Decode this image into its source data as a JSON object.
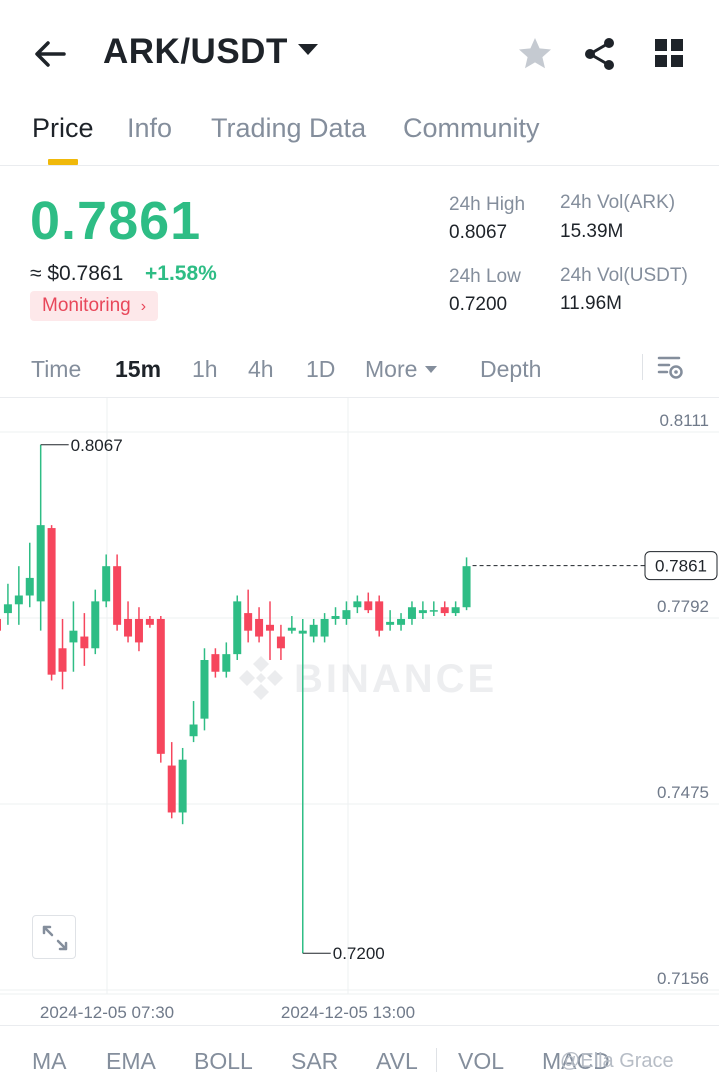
{
  "header": {
    "pair": "ARK/USDT",
    "icons": [
      "back-arrow-icon",
      "dropdown-caret-icon",
      "star-icon",
      "share-icon",
      "grid-icon"
    ]
  },
  "tabs": [
    {
      "label": "Price",
      "active": true
    },
    {
      "label": "Info",
      "active": false
    },
    {
      "label": "Trading Data",
      "active": false
    },
    {
      "label": "Community",
      "active": false
    }
  ],
  "price": {
    "last": "0.7861",
    "usd_approx": "≈ $0.7861",
    "change": "+1.58%",
    "monitor_label": "Monitoring",
    "monitor_chevron": "›"
  },
  "stats": {
    "high_label": "24h High",
    "high_value": "0.8067",
    "vol_ark_label": "24h Vol(ARK)",
    "vol_ark_value": "15.39M",
    "low_label": "24h Low",
    "low_value": "0.7200",
    "vol_usdt_label": "24h Vol(USDT)",
    "vol_usdt_value": "11.96M"
  },
  "intervals": [
    {
      "label": "Time",
      "active": false
    },
    {
      "label": "15m",
      "active": true
    },
    {
      "label": "1h",
      "active": false
    },
    {
      "label": "4h",
      "active": false
    },
    {
      "label": "1D",
      "active": false
    },
    {
      "label": "More",
      "active": false
    },
    {
      "label": "Depth",
      "active": false
    }
  ],
  "indicators": [
    "MA",
    "EMA",
    "BOLL",
    "SAR",
    "AVL",
    "VOL",
    "MACD"
  ],
  "watermark": {
    "brand": "BINANCE",
    "overlay_tag": "@Ella Grace"
  },
  "colors": {
    "up": "#2ebd85",
    "down": "#f6465d",
    "accent": "#f0b90b",
    "text": "#1e2329",
    "muted": "#848e9c"
  },
  "chart_data": {
    "type": "candlestick",
    "y_ticks": [
      "0.8111",
      "0.7792",
      "0.7475",
      "0.7156"
    ],
    "ylim": [
      0.7156,
      0.8111
    ],
    "x_ticks": [
      "2024-12-05 07:30",
      "2024-12-05 13:00"
    ],
    "current_price_label": "0.7861",
    "high_marker": "0.8067",
    "low_marker": "0.7200",
    "current_price": 0.7861,
    "high": 0.8067,
    "low": 0.72,
    "candles": [
      {
        "o": 0.777,
        "h": 0.781,
        "c": 0.775,
        "l": 0.774
      },
      {
        "o": 0.778,
        "h": 0.783,
        "c": 0.7795,
        "l": 0.776
      },
      {
        "o": 0.7795,
        "h": 0.786,
        "c": 0.781,
        "l": 0.776
      },
      {
        "o": 0.781,
        "h": 0.79,
        "c": 0.784,
        "l": 0.779
      },
      {
        "o": 0.78,
        "h": 0.8067,
        "c": 0.793,
        "l": 0.775
      },
      {
        "o": 0.7925,
        "h": 0.793,
        "c": 0.7675,
        "l": 0.7665
      },
      {
        "o": 0.772,
        "h": 0.777,
        "c": 0.768,
        "l": 0.765
      },
      {
        "o": 0.773,
        "h": 0.78,
        "c": 0.775,
        "l": 0.768
      },
      {
        "o": 0.774,
        "h": 0.778,
        "c": 0.772,
        "l": 0.769
      },
      {
        "o": 0.772,
        "h": 0.782,
        "c": 0.78,
        "l": 0.771
      },
      {
        "o": 0.78,
        "h": 0.788,
        "c": 0.786,
        "l": 0.779
      },
      {
        "o": 0.786,
        "h": 0.788,
        "c": 0.776,
        "l": 0.775
      },
      {
        "o": 0.777,
        "h": 0.78,
        "c": 0.774,
        "l": 0.773
      },
      {
        "o": 0.777,
        "h": 0.779,
        "c": 0.773,
        "l": 0.7715
      },
      {
        "o": 0.777,
        "h": 0.7775,
        "c": 0.776,
        "l": 0.7755
      },
      {
        "o": 0.777,
        "h": 0.7775,
        "c": 0.754,
        "l": 0.7525
      },
      {
        "o": 0.752,
        "h": 0.756,
        "c": 0.744,
        "l": 0.743
      },
      {
        "o": 0.744,
        "h": 0.755,
        "c": 0.753,
        "l": 0.742
      },
      {
        "o": 0.757,
        "h": 0.763,
        "c": 0.759,
        "l": 0.756
      },
      {
        "o": 0.76,
        "h": 0.772,
        "c": 0.77,
        "l": 0.758
      },
      {
        "o": 0.771,
        "h": 0.772,
        "c": 0.768,
        "l": 0.767
      },
      {
        "o": 0.768,
        "h": 0.773,
        "c": 0.771,
        "l": 0.767
      },
      {
        "o": 0.771,
        "h": 0.781,
        "c": 0.78,
        "l": 0.77
      },
      {
        "o": 0.778,
        "h": 0.782,
        "c": 0.775,
        "l": 0.773
      },
      {
        "o": 0.777,
        "h": 0.779,
        "c": 0.774,
        "l": 0.773
      },
      {
        "o": 0.776,
        "h": 0.78,
        "c": 0.775,
        "l": 0.77
      },
      {
        "o": 0.774,
        "h": 0.776,
        "c": 0.772,
        "l": 0.77
      },
      {
        "o": 0.775,
        "h": 0.7775,
        "c": 0.7755,
        "l": 0.7745
      },
      {
        "o": 0.7745,
        "h": 0.777,
        "c": 0.775,
        "l": 0.72
      },
      {
        "o": 0.774,
        "h": 0.777,
        "c": 0.776,
        "l": 0.773
      },
      {
        "o": 0.774,
        "h": 0.778,
        "c": 0.777,
        "l": 0.773
      },
      {
        "o": 0.777,
        "h": 0.779,
        "c": 0.7775,
        "l": 0.776
      },
      {
        "o": 0.777,
        "h": 0.78,
        "c": 0.7785,
        "l": 0.776
      },
      {
        "o": 0.779,
        "h": 0.781,
        "c": 0.78,
        "l": 0.778
      },
      {
        "o": 0.78,
        "h": 0.7815,
        "c": 0.7785,
        "l": 0.778
      },
      {
        "o": 0.78,
        "h": 0.781,
        "c": 0.775,
        "l": 0.774
      },
      {
        "o": 0.776,
        "h": 0.7785,
        "c": 0.7765,
        "l": 0.775
      },
      {
        "o": 0.776,
        "h": 0.778,
        "c": 0.777,
        "l": 0.775
      },
      {
        "o": 0.777,
        "h": 0.78,
        "c": 0.779,
        "l": 0.776
      },
      {
        "o": 0.778,
        "h": 0.78,
        "c": 0.7785,
        "l": 0.777
      },
      {
        "o": 0.7785,
        "h": 0.78,
        "c": 0.7785,
        "l": 0.7775
      },
      {
        "o": 0.779,
        "h": 0.78,
        "c": 0.778,
        "l": 0.7775
      },
      {
        "o": 0.778,
        "h": 0.78,
        "c": 0.779,
        "l": 0.7775
      },
      {
        "o": 0.779,
        "h": 0.7875,
        "c": 0.786,
        "l": 0.7785
      }
    ]
  }
}
